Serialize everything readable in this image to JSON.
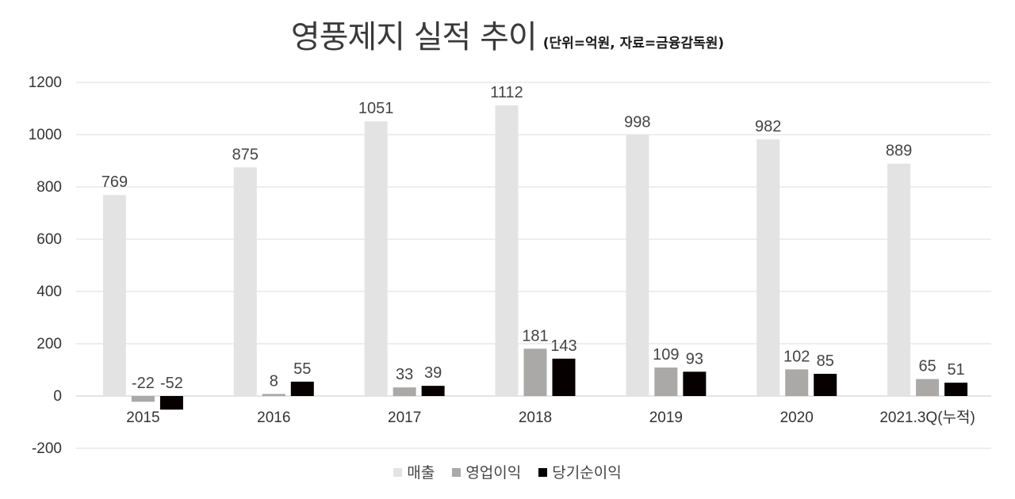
{
  "title": "영풍제지 실적 추이",
  "subtitle": "(단위=억원, 자료=금융감독원)",
  "chart_data": {
    "type": "bar",
    "categories": [
      "2015",
      "2016",
      "2017",
      "2018",
      "2019",
      "2020",
      "2021.3Q(누적)"
    ],
    "series": [
      {
        "name": "매출",
        "color": "#e3e3e3",
        "values": [
          769,
          875,
          1051,
          1112,
          998,
          982,
          889
        ]
      },
      {
        "name": "영업이익",
        "color": "#aba8a8",
        "values": [
          -22,
          8,
          33,
          181,
          109,
          102,
          65
        ]
      },
      {
        "name": "당기순이익",
        "color": "#070000",
        "values": [
          -52,
          55,
          39,
          143,
          93,
          85,
          51
        ]
      }
    ],
    "ylim": [
      -200,
      1200
    ],
    "yticks": [
      -200,
      0,
      200,
      400,
      600,
      800,
      1000,
      1200
    ],
    "grid": true,
    "data_labels": true,
    "legend_position": "bottom-center"
  }
}
